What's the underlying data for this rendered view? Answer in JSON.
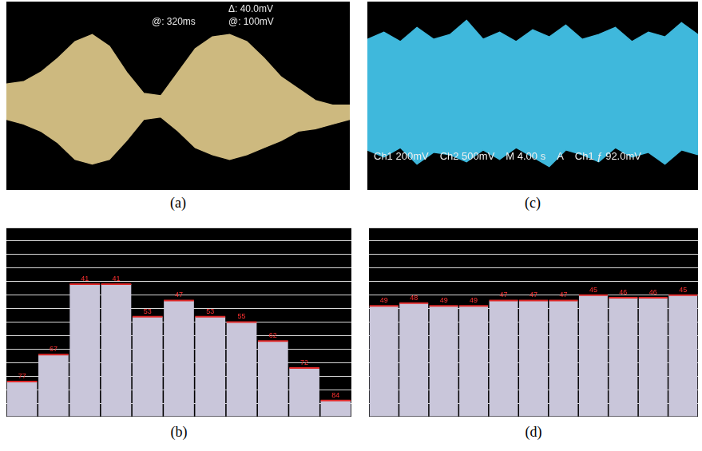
{
  "chart_data": [
    {
      "caption": "(a)",
      "type": "area",
      "x": [
        0,
        0.5,
        1,
        1.5,
        2,
        2.5,
        3,
        3.5,
        4,
        4.5,
        5,
        5.5,
        6,
        6.5,
        7,
        7.5,
        8,
        8.5,
        9,
        9.5,
        10
      ],
      "series": [
        {
          "color": "#cdb97f",
          "values": [
            0.5,
            0.6,
            1.0,
            1.6,
            2.3,
            2.6,
            2.1,
            1.0,
            0.1,
            0.0,
            1.0,
            2.0,
            2.5,
            2.6,
            2.3,
            1.6,
            0.8,
            0.3,
            -0.2,
            -0.4,
            -0.4
          ]
        },
        {
          "color": "#cdb97f",
          "values": [
            -1.0,
            -1.2,
            -1.5,
            -2.0,
            -2.7,
            -2.9,
            -2.7,
            -1.9,
            -1.0,
            -0.9,
            -1.5,
            -2.2,
            -2.5,
            -2.7,
            -2.5,
            -2.2,
            -1.9,
            -1.5,
            -1.4,
            -1.2,
            -1.0
          ]
        }
      ],
      "xlim": [
        0,
        10
      ],
      "ylim": [
        -4,
        4
      ],
      "grid": false,
      "tick_labels": false,
      "annotations": [
        "Δ: 40.0mV",
        "@: 320ms",
        "@: 100mV"
      ]
    },
    {
      "caption": "(b)",
      "type": "bar",
      "categories": [
        null,
        null,
        null,
        null,
        null,
        null,
        null,
        null,
        null,
        null,
        null
      ],
      "values": [
        77,
        67,
        41,
        41,
        53,
        47,
        53,
        55,
        62,
        72,
        84
      ],
      "color": "#c9c6da",
      "ylim": [
        90,
        20
      ],
      "yticks": [
        20,
        25,
        30,
        35,
        40,
        45,
        50,
        55,
        60,
        65,
        70,
        75,
        80,
        85,
        90
      ],
      "grid": true,
      "tick_labels": false,
      "data_labels": true
    },
    {
      "caption": "(c)",
      "type": "area",
      "x": [
        0,
        0.5,
        1,
        1.5,
        2,
        2.5,
        3,
        3.5,
        4,
        4.5,
        5,
        5.5,
        6,
        6.5,
        7,
        7.5,
        8,
        8.5,
        9,
        9.5,
        10
      ],
      "series": [
        {
          "color": "#3fb8dc",
          "values": [
            2.4,
            2.7,
            2.3,
            2.9,
            2.4,
            2.6,
            3.2,
            2.4,
            2.7,
            2.3,
            2.8,
            2.5,
            3.0,
            2.4,
            2.6,
            2.9,
            2.3,
            2.7,
            2.5,
            3.1,
            2.6
          ]
        },
        {
          "color": "#3fb8dc",
          "values": [
            -2.3,
            -2.6,
            -2.2,
            -2.9,
            -2.4,
            -2.5,
            -2.8,
            -2.3,
            -2.7,
            -2.2,
            -2.6,
            -3.0,
            -2.3,
            -2.5,
            -2.8,
            -2.2,
            -2.6,
            -2.4,
            -2.9,
            -2.3,
            -2.5
          ]
        }
      ],
      "xlim": [
        0,
        10
      ],
      "ylim": [
        -4,
        4
      ],
      "grid": false,
      "tick_labels": false,
      "annotations": [
        "Ch1 200mV",
        "Ch2 500mV",
        "M 4.00 s",
        "A",
        "Ch1 ƒ 92.0mV"
      ]
    },
    {
      "caption": "(d)",
      "type": "bar",
      "categories": [
        null,
        null,
        null,
        null,
        null,
        null,
        null,
        null,
        null,
        null,
        null
      ],
      "values": [
        49,
        48,
        49,
        49,
        47,
        47,
        47,
        45,
        46,
        46,
        45
      ],
      "color": "#c9c6da",
      "ylim": [
        90,
        20
      ],
      "yticks": [
        20,
        25,
        30,
        35,
        40,
        45,
        50,
        55,
        60,
        65,
        70,
        75,
        80,
        85,
        90
      ],
      "grid": true,
      "tick_labels": false,
      "data_labels": true
    }
  ]
}
